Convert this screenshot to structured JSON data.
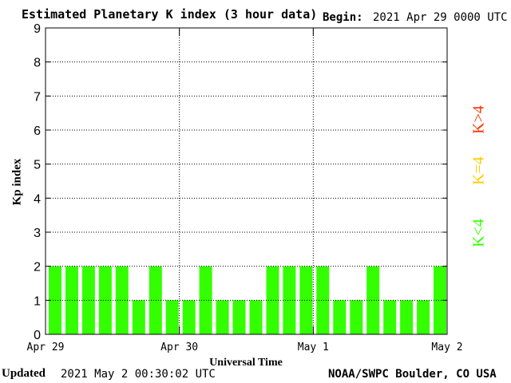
{
  "header": {
    "title": "Estimated Planetary K index (3 hour data)",
    "begin_label": "Begin:",
    "begin_value": "2021 Apr 29 0000 UTC"
  },
  "footer": {
    "updated_label": "Updated",
    "updated_value": "2021 May  2 00:30:02 UTC",
    "source": "NOAA/SWPC Boulder, CO USA"
  },
  "legend": {
    "high": {
      "label": "K>4",
      "color": "#ff3300"
    },
    "equal": {
      "label": "K=4",
      "color": "#ffcc00"
    },
    "low": {
      "label": "K<4",
      "color": "#33ff00"
    }
  },
  "chart_data": {
    "type": "bar",
    "title": "Estimated Planetary K index (3 hour data)",
    "xlabel": "Universal Time",
    "ylabel": "Kp index",
    "ylim": [
      0,
      9
    ],
    "yticks": [
      0,
      1,
      2,
      3,
      4,
      5,
      6,
      7,
      8,
      9
    ],
    "x_tick_labels": [
      "Apr 29",
      "Apr 30",
      "May 1",
      "May 2"
    ],
    "grid": "dotted",
    "bar_color": "#33ff00",
    "interval_hours": 3,
    "categories": [
      "Apr 29 00",
      "Apr 29 03",
      "Apr 29 06",
      "Apr 29 09",
      "Apr 29 12",
      "Apr 29 15",
      "Apr 29 18",
      "Apr 29 21",
      "Apr 30 00",
      "Apr 30 03",
      "Apr 30 06",
      "Apr 30 09",
      "Apr 30 12",
      "Apr 30 15",
      "Apr 30 18",
      "Apr 30 21",
      "May 1 00",
      "May 1 03",
      "May 1 06",
      "May 1 09",
      "May 1 12",
      "May 1 15",
      "May 1 18",
      "May 1 21"
    ],
    "values": [
      2,
      2,
      2,
      2,
      2,
      1,
      2,
      1,
      1,
      2,
      1,
      1,
      1,
      2,
      2,
      2,
      2,
      1,
      1,
      2,
      1,
      1,
      1,
      2
    ]
  }
}
